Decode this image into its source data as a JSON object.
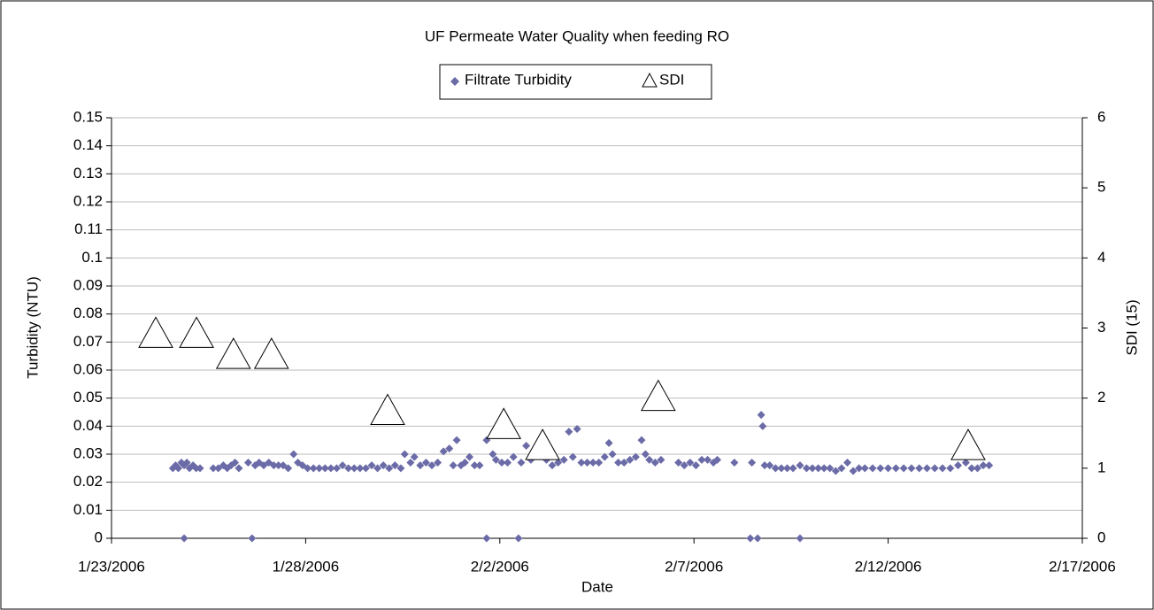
{
  "chart_data": {
    "type": "scatter",
    "title": "UF Permeate Water Quality when feeding RO",
    "x_label": "Date",
    "y_label": "Turbidity (NTU)",
    "y2_label": "SDI (15)",
    "xlim": [
      0,
      25
    ],
    "xticks": [
      {
        "value": 0,
        "label": "1/23/2006"
      },
      {
        "value": 5,
        "label": "1/28/2006"
      },
      {
        "value": 10,
        "label": "2/2/2006"
      },
      {
        "value": 15,
        "label": "2/7/2006"
      },
      {
        "value": 20,
        "label": "2/12/2006"
      },
      {
        "value": 25,
        "label": "2/17/2006"
      }
    ],
    "ylim": [
      0,
      0.15
    ],
    "yticks": [
      0,
      0.01,
      0.02,
      0.03,
      0.04,
      0.05,
      0.06,
      0.07,
      0.08,
      0.09,
      0.1,
      0.11,
      0.12,
      0.13,
      0.14,
      0.15
    ],
    "y2lim": [
      0,
      6
    ],
    "y2ticks": [
      0,
      1,
      2,
      3,
      4,
      5,
      6
    ],
    "grid": true,
    "legend": "top",
    "series": [
      {
        "name": "Filtrate Turbidity",
        "color": "#6b6ba8",
        "marker": "diamond",
        "x": [
          1.58,
          1.65,
          1.72,
          1.8,
          1.87,
          1.87,
          1.94,
          2.01,
          2.1,
          2.18,
          2.28,
          2.62,
          2.75,
          2.88,
          2.98,
          3.08,
          3.18,
          3.28,
          3.52,
          3.62,
          3.7,
          3.8,
          3.92,
          4.05,
          4.18,
          4.3,
          4.42,
          4.55,
          4.69,
          4.8,
          4.92,
          5.05,
          5.2,
          5.35,
          5.5,
          5.65,
          5.8,
          5.95,
          6.1,
          6.25,
          6.4,
          6.55,
          6.7,
          6.85,
          7.0,
          7.15,
          7.3,
          7.45,
          7.55,
          7.7,
          7.8,
          7.95,
          8.1,
          8.25,
          8.4,
          8.55,
          8.7,
          8.8,
          8.89,
          9.0,
          9.1,
          9.22,
          9.35,
          9.48,
          9.66,
          9.66,
          9.82,
          9.9,
          10.05,
          10.2,
          10.35,
          10.48,
          10.55,
          10.68,
          10.8,
          10.92,
          11.05,
          11.2,
          11.35,
          11.5,
          11.65,
          11.78,
          11.88,
          11.99,
          12.1,
          12.25,
          12.4,
          12.55,
          12.7,
          12.81,
          12.9,
          13.05,
          13.2,
          13.35,
          13.5,
          13.65,
          13.75,
          13.85,
          14.0,
          14.15,
          14.6,
          14.75,
          14.9,
          15.05,
          15.2,
          15.35,
          15.5,
          15.6,
          16.04,
          16.45,
          16.49,
          16.64,
          16.73,
          16.77,
          16.82,
          16.95,
          17.1,
          17.25,
          17.4,
          17.55,
          17.73,
          17.73,
          17.9,
          18.05,
          18.2,
          18.35,
          18.5,
          18.65,
          18.8,
          18.95,
          19.1,
          19.25,
          19.4,
          19.6,
          19.8,
          20.0,
          20.2,
          20.4,
          20.6,
          20.8,
          21.0,
          21.2,
          21.4,
          21.6,
          21.8,
          22.0,
          22.15,
          22.3,
          22.45,
          22.6
        ],
        "values": [
          0.025,
          0.026,
          0.025,
          0.027,
          0,
          0.026,
          0.027,
          0.025,
          0.026,
          0.025,
          0.025,
          0.025,
          0.025,
          0.026,
          0.025,
          0.026,
          0.027,
          0.025,
          0.027,
          0,
          0.026,
          0.027,
          0.026,
          0.027,
          0.026,
          0.026,
          0.026,
          0.025,
          0.03,
          0.027,
          0.026,
          0.025,
          0.025,
          0.025,
          0.025,
          0.025,
          0.025,
          0.026,
          0.025,
          0.025,
          0.025,
          0.025,
          0.026,
          0.025,
          0.026,
          0.025,
          0.026,
          0.025,
          0.03,
          0.027,
          0.029,
          0.026,
          0.027,
          0.026,
          0.027,
          0.031,
          0.032,
          0.026,
          0.035,
          0.026,
          0.027,
          0.029,
          0.026,
          0.026,
          0,
          0.035,
          0.03,
          0.028,
          0.027,
          0.027,
          0.029,
          0,
          0.027,
          0.033,
          0.028,
          0.03,
          0.035,
          0.028,
          0.026,
          0.027,
          0.028,
          0.038,
          0.029,
          0.039,
          0.027,
          0.027,
          0.027,
          0.027,
          0.029,
          0.034,
          0.03,
          0.027,
          0.027,
          0.028,
          0.029,
          0.035,
          0.03,
          0.028,
          0.027,
          0.028,
          0.027,
          0.026,
          0.027,
          0.026,
          0.028,
          0.028,
          0.027,
          0.028,
          0.027,
          0,
          0.027,
          0,
          0.044,
          0.04,
          0.026,
          0.026,
          0.025,
          0.025,
          0.025,
          0.025,
          0,
          0.026,
          0.025,
          0.025,
          0.025,
          0.025,
          0.025,
          0.024,
          0.025,
          0.027,
          0.024,
          0.025,
          0.025,
          0.025,
          0.025,
          0.025,
          0.025,
          0.025,
          0.025,
          0.025,
          0.025,
          0.025,
          0.025,
          0.025,
          0.026,
          0.027,
          0.025,
          0.025,
          0.026,
          0.026
        ]
      },
      {
        "name": "SDI",
        "color": "#000000",
        "marker": "triangle",
        "axis": "y2",
        "x": [
          1.14,
          2.19,
          3.14,
          4.12,
          7.11,
          10.1,
          11.1,
          14.08,
          22.06
        ],
        "values": [
          2.9,
          2.9,
          2.6,
          2.6,
          1.8,
          1.6,
          1.3,
          2.0,
          1.3
        ]
      }
    ]
  }
}
